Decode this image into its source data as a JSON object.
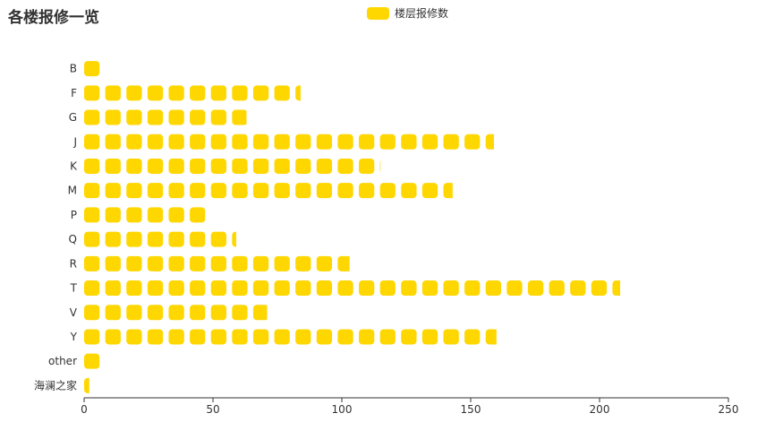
{
  "title": "各楼报修一览",
  "legend": {
    "label": "楼层报修数",
    "color": "#ffd700"
  },
  "chart_data": {
    "type": "bar",
    "orientation": "horizontal",
    "style": "pictorial-symbol-repeat",
    "title": "各楼报修一览",
    "categories": [
      "B",
      "F",
      "G",
      "J",
      "K",
      "M",
      "P",
      "Q",
      "R",
      "T",
      "V",
      "Y",
      "other",
      "海澜之家"
    ],
    "series": [
      {
        "name": "楼层报修数",
        "values": [
          6,
          84,
          63,
          159,
          115,
          143,
          47,
          59,
          103,
          208,
          71,
          160,
          6,
          2
        ]
      }
    ],
    "xlim": [
      0,
      250
    ],
    "xticks": [
      0,
      50,
      100,
      150,
      200,
      250
    ],
    "symbol_size_units": 6,
    "symbol_gap_units": 2.2,
    "color": "#ffd700",
    "grid": false,
    "legend_position": "top-center"
  }
}
